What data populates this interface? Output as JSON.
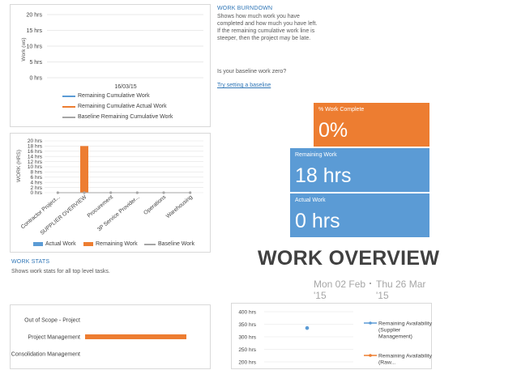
{
  "burndown": {
    "yaxis_label": "Work (ws)",
    "yticks": [
      "20 hrs",
      "15 hrs",
      "10 hrs",
      "5 hrs",
      "0 hrs"
    ],
    "xtick": "16/03/15",
    "legend": [
      {
        "label": "Remaining Cumulative Work",
        "color": "#5b9bd5"
      },
      {
        "label": "Remaining Cumulative Actual Work",
        "color": "#ed7d31"
      },
      {
        "label": "Baseline Remaining Cumulative Work",
        "color": "#a5a5a5"
      }
    ]
  },
  "burndown_info": {
    "heading": "WORK BURNDOWN",
    "description": "Shows how much work you have completed and how much you have left. If the remaining cumulative work line is steeper, then the project may be late.",
    "question": "Is your baseline work zero?",
    "link": "Try setting a baseline"
  },
  "tiles": {
    "percent_complete": {
      "label": "% Work Complete",
      "value": "0%",
      "color": "#ed7d31"
    },
    "remaining": {
      "label": "Remaining Work",
      "value": "18 hrs",
      "color": "#5b9bd5"
    },
    "actual": {
      "label": "Actual Work",
      "value": "0 hrs",
      "color": "#5b9bd5"
    }
  },
  "chart_data": [
    {
      "type": "bar",
      "ylabel": "WORK (HRS)",
      "ylim": [
        0,
        20
      ],
      "yticks": [
        "20 hrs",
        "18 hrs",
        "16 hrs",
        "14 hrs",
        "12 hrs",
        "10 hrs",
        "8 hrs",
        "6 hrs",
        "4 hrs",
        "2 hrs",
        "0 hrs"
      ],
      "categories": [
        "Contractor Project...",
        "SUPPLIER OVERVIEW",
        "Procurement",
        "3P Service Provider...",
        "Operations",
        "Warehousing"
      ],
      "series": [
        {
          "name": "Actual Work",
          "color": "#5b9bd5",
          "values": [
            0,
            0,
            0,
            0,
            0,
            0
          ]
        },
        {
          "name": "Remaining Work",
          "color": "#ed7d31",
          "values": [
            0,
            18,
            0,
            0,
            0,
            0
          ]
        },
        {
          "name": "Baseline Work",
          "color": "#a5a5a5",
          "values": [
            0,
            0,
            0,
            0,
            0,
            0
          ]
        }
      ],
      "legend": "bottom"
    },
    {
      "type": "bar",
      "orientation": "horizontal",
      "categories": [
        "Out of Scope - Project",
        "Project Management",
        "Consolidation Management"
      ],
      "values": [
        0,
        1,
        0
      ],
      "color": "#ed7d31"
    },
    {
      "type": "scatter",
      "yticks": [
        "400 hrs",
        "350 hrs",
        "300 hrs",
        "250 hrs",
        "200 hrs"
      ],
      "ylim": [
        200,
        400
      ],
      "points": [
        {
          "y": 335
        }
      ],
      "series": [
        {
          "name": "Remaining Availability (Supplier Management)",
          "color": "#5b9bd5"
        },
        {
          "name": "Remaining Availability (Raw...",
          "color": "#ed7d31"
        }
      ]
    }
  ],
  "work_stats": {
    "heading": "WORK STATS",
    "description": "Shows work stats for all top level tasks."
  },
  "overview": {
    "title": "WORK OVERVIEW",
    "start_day": "Mon 02 Feb",
    "start_year": "'15",
    "end_day": "Thu 26 Mar",
    "end_year": "'15"
  }
}
